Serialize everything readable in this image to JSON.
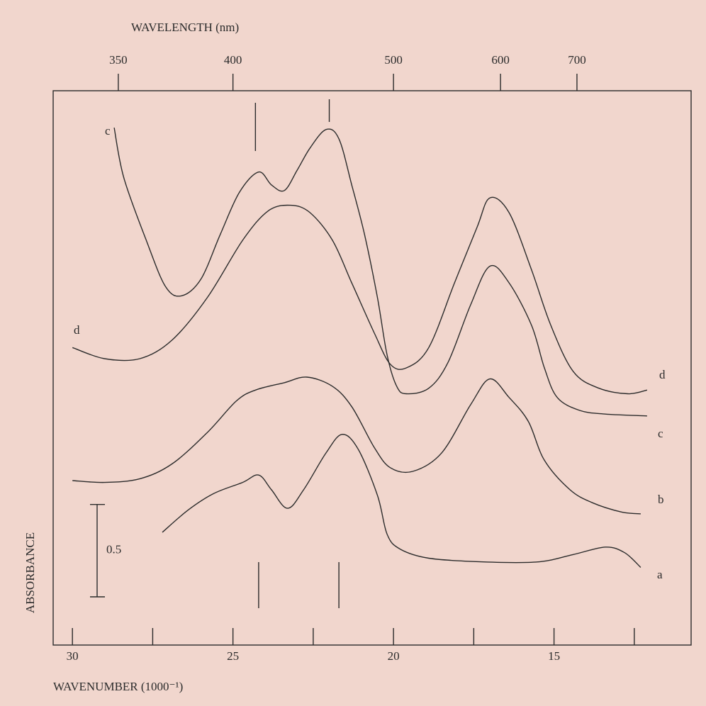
{
  "chart_data": {
    "type": "line",
    "x2label": "WAVELENGTH (nm)",
    "xlabel": "WAVENUMBER (1000⁻¹)",
    "ylabel": "ABSORBANCE",
    "xlim": [
      30.6,
      10.73
    ],
    "ylim": [
      0,
      3
    ],
    "xticks": [
      30,
      25,
      20,
      15
    ],
    "xminorticks": [
      27.5,
      22.5,
      17.5,
      12.5
    ],
    "x2ticks": [
      350,
      400,
      500,
      600,
      700
    ],
    "scale_bar": 0.5,
    "marker_lines_top": [
      24.3,
      22.0
    ],
    "marker_lines_bottom": [
      24.2,
      21.7
    ],
    "series": [
      {
        "name": "a",
        "color": "#2b2b2b",
        "x": [
          27.2,
          26.4,
          25.6,
          24.7,
          24.2,
          23.8,
          23.3,
          22.8,
          22.1,
          21.6,
          21.1,
          20.5,
          20.2,
          19.8,
          18.9,
          17.2,
          15.5,
          14.4,
          13.4,
          12.8,
          12.3
        ],
        "values": [
          0.61,
          0.73,
          0.82,
          0.88,
          0.92,
          0.84,
          0.74,
          0.84,
          1.04,
          1.14,
          1.06,
          0.81,
          0.6,
          0.52,
          0.47,
          0.45,
          0.45,
          0.49,
          0.53,
          0.5,
          0.42
        ]
      },
      {
        "name": "b",
        "color": "#2b2b2b",
        "x": [
          30.0,
          29.0,
          27.9,
          26.9,
          25.8,
          24.9,
          24.3,
          23.4,
          22.7,
          21.9,
          21.3,
          20.6,
          20.1,
          19.4,
          18.5,
          17.6,
          17.0,
          16.4,
          15.8,
          15.3,
          14.5,
          13.8,
          12.9,
          12.3
        ],
        "values": [
          0.89,
          0.88,
          0.9,
          0.98,
          1.15,
          1.32,
          1.38,
          1.42,
          1.45,
          1.4,
          1.29,
          1.07,
          0.96,
          0.94,
          1.04,
          1.3,
          1.44,
          1.34,
          1.21,
          1.0,
          0.84,
          0.77,
          0.72,
          0.71
        ]
      },
      {
        "name": "c",
        "color": "#2b2b2b",
        "x": [
          28.7,
          28.4,
          27.7,
          27.1,
          26.6,
          26.0,
          25.4,
          24.8,
          24.2,
          23.8,
          23.4,
          23.0,
          22.6,
          22.1,
          21.7,
          21.3,
          20.9,
          20.5,
          20.2,
          19.9,
          19.6,
          18.9,
          18.3,
          17.6,
          17.0,
          16.4,
          15.7,
          15.3,
          14.9,
          14.2,
          13.4,
          12.1
        ],
        "values": [
          2.8,
          2.53,
          2.19,
          1.94,
          1.89,
          1.98,
          2.22,
          2.45,
          2.56,
          2.49,
          2.46,
          2.57,
          2.69,
          2.79,
          2.74,
          2.49,
          2.22,
          1.88,
          1.57,
          1.4,
          1.36,
          1.39,
          1.53,
          1.84,
          2.05,
          1.96,
          1.73,
          1.5,
          1.34,
          1.27,
          1.25,
          1.24
        ]
      },
      {
        "name": "d",
        "color": "#2b2b2b",
        "x": [
          30.0,
          29.0,
          27.9,
          26.9,
          25.8,
          24.7,
          23.9,
          23.2,
          22.6,
          21.9,
          21.3,
          20.6,
          20.1,
          19.6,
          18.9,
          18.1,
          17.4,
          17.0,
          16.4,
          15.7,
          15.1,
          14.4,
          13.6,
          12.7,
          12.1
        ],
        "values": [
          1.61,
          1.55,
          1.55,
          1.65,
          1.88,
          2.19,
          2.35,
          2.38,
          2.34,
          2.19,
          1.96,
          1.69,
          1.52,
          1.5,
          1.61,
          1.96,
          2.26,
          2.42,
          2.34,
          2.03,
          1.73,
          1.48,
          1.39,
          1.36,
          1.38
        ]
      }
    ]
  }
}
